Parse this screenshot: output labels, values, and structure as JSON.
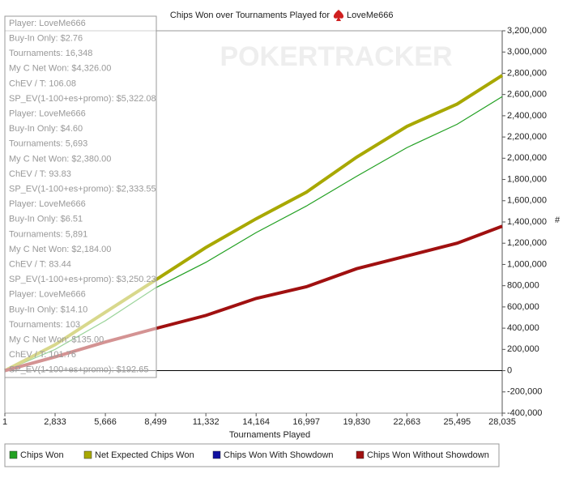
{
  "chart_data": {
    "type": "line",
    "title": "Chips Won over Tournaments Played for",
    "title_player": "LoveMe666",
    "watermark": "POKERTRACKER",
    "x_label": "Tournaments Played",
    "y_label": "#",
    "x": [
      1,
      2833,
      5666,
      8499,
      11332,
      14164,
      16997,
      19830,
      22663,
      25495,
      28035
    ],
    "xlim": [
      1,
      28035
    ],
    "xticks": [
      1,
      {
        "value": 2833,
        "label": "2,833"
      },
      {
        "value": 5666,
        "label": "5,666"
      },
      {
        "value": 8499,
        "label": "8,499"
      },
      {
        "value": 11332,
        "label": "11,332"
      },
      {
        "value": 14164,
        "label": "14,164"
      },
      {
        "value": 16997,
        "label": "16,997"
      },
      {
        "value": 19830,
        "label": "19,830"
      },
      {
        "value": 22663,
        "label": "22,663"
      },
      {
        "value": 25495,
        "label": "25,495"
      },
      {
        "value": 28035,
        "label": "28,035"
      }
    ],
    "ylim": [
      -400000,
      3200000
    ],
    "yticks": [
      {
        "value": -400000,
        "label": "-400,000"
      },
      {
        "value": -200000,
        "label": "-200,000"
      },
      0,
      {
        "value": 200000,
        "label": "200,000"
      },
      {
        "value": 400000,
        "label": "400,000"
      },
      {
        "value": 600000,
        "label": "600,000"
      },
      {
        "value": 800000,
        "label": "800,000"
      },
      {
        "value": 1000000,
        "label": "1,000,000"
      },
      {
        "value": 1200000,
        "label": "1,200,000"
      },
      {
        "value": 1400000,
        "label": "1,400,000"
      },
      {
        "value": 1600000,
        "label": "1,600,000"
      },
      {
        "value": 1800000,
        "label": "1,800,000"
      },
      {
        "value": 2000000,
        "label": "2,000,000"
      },
      {
        "value": 2200000,
        "label": "2,200,000"
      },
      {
        "value": 2400000,
        "label": "2,400,000"
      },
      {
        "value": 2600000,
        "label": "2,600,000"
      },
      {
        "value": 2800000,
        "label": "2,800,000"
      },
      {
        "value": 3000000,
        "label": "3,000,000"
      },
      {
        "value": 3200000,
        "label": "3,200,000"
      }
    ],
    "series": [
      {
        "name": "Chips Won",
        "color": "#22a022",
        "values": [
          0,
          200000,
          470000,
          780000,
          1020000,
          1300000,
          1550000,
          1830000,
          2100000,
          2320000,
          2580000
        ]
      },
      {
        "name": "Net Expected Chips Won",
        "color": "#a8a800",
        "values": [
          0,
          244000,
          550000,
          854000,
          1160000,
          1430000,
          1680000,
          2010000,
          2300000,
          2510000,
          2780000
        ]
      },
      {
        "name": "Chips Won With Showdown",
        "color": "#1010a0",
        "values": [
          null,
          null,
          null,
          null,
          null,
          null,
          null,
          null,
          null,
          null,
          null
        ]
      },
      {
        "name": "Chips Won Without Showdown",
        "color": "#a01010",
        "values": [
          0,
          130000,
          270000,
          397000,
          520000,
          680000,
          790000,
          960000,
          1080000,
          1200000,
          1360000
        ]
      }
    ],
    "annotations": [
      "Player: LoveMe666",
      "Buy-In Only: $2.76",
      "Tournaments: 16,348",
      "My C Net Won: $4,326.00",
      "ChEV / T: 106.08",
      "SP_EV(1-100+es+promo): $5,322.08",
      "Player: LoveMe666",
      "Buy-In Only: $4.60",
      "Tournaments: 5,693",
      "My C Net Won: $2,380.00",
      "ChEV / T: 93.83",
      "SP_EV(1-100+es+promo): $2,333.55",
      "Player: LoveMe666",
      "Buy-In Only: $6.51",
      "Tournaments: 5,891",
      "My C Net Won: $2,184.00",
      "ChEV / T: 83.44",
      "SP_EV(1-100+es+promo): $3,250.23",
      "Player: LoveMe666",
      "Buy-In Only: $14.10",
      "Tournaments: 103",
      "My C Net Won: $135.00",
      "ChEV / T: 101.76",
      "SP_EV(1-100+es+promo): $192.65"
    ]
  }
}
